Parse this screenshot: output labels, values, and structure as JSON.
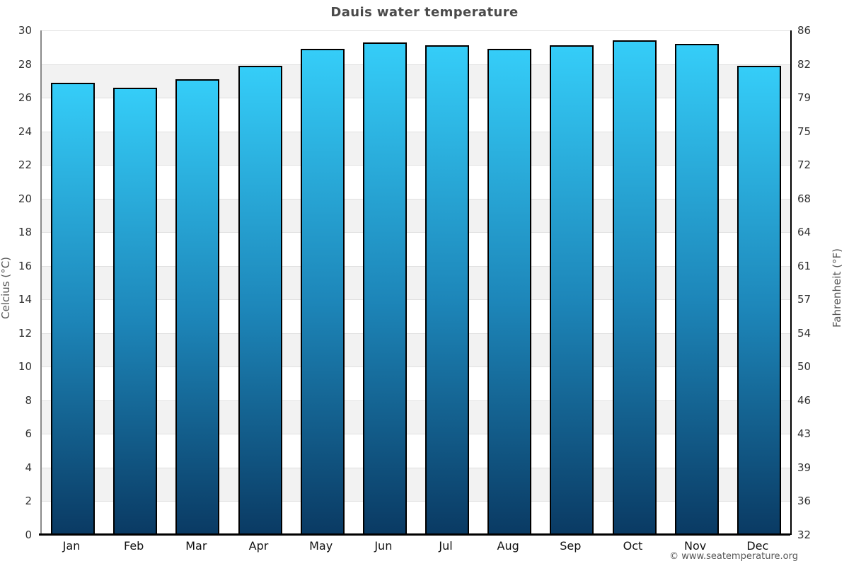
{
  "title": "Dauis water temperature",
  "footer": "© www.seatemperature.org",
  "axes": {
    "left_label": "Celcius (°C)",
    "right_label": "Fahrenheit (°F)"
  },
  "chart_data": {
    "type": "bar",
    "title": "Dauis water temperature",
    "categories": [
      "Jan",
      "Feb",
      "Mar",
      "Apr",
      "May",
      "Jun",
      "Jul",
      "Aug",
      "Sep",
      "Oct",
      "Nov",
      "Dec"
    ],
    "values": [
      26.9,
      26.6,
      27.1,
      27.9,
      28.9,
      29.3,
      29.1,
      28.9,
      29.1,
      29.4,
      29.2,
      27.9
    ],
    "series_name": "Water temperature (°C)",
    "xlabel": "",
    "ylabel_left": "Celcius (°C)",
    "ylabel_right": "Fahrenheit (°F)",
    "ylim_celsius": [
      0,
      30
    ],
    "yticks_celsius": [
      30,
      28,
      26,
      24,
      22,
      20,
      18,
      16,
      14,
      12,
      10,
      8,
      6,
      4,
      2,
      0
    ],
    "yticks_fahrenheit": [
      86,
      82,
      79,
      75,
      72,
      68,
      64,
      61,
      57,
      54,
      50,
      46,
      43,
      39,
      36,
      32
    ],
    "grid": "alternating horizontal bands every 2°C",
    "legend": "none",
    "colors": {
      "bar_gradient_top": "#35cdf8",
      "bar_gradient_mid": "#1d86b9",
      "bar_gradient_bottom": "#0a3a63",
      "bar_outline": "#000000",
      "band_gray": "#f2f2f2",
      "band_white": "#ffffff",
      "gridline": "#e0e0e0",
      "title_text": "#4a4a4a",
      "tick_text": "#333333"
    }
  }
}
